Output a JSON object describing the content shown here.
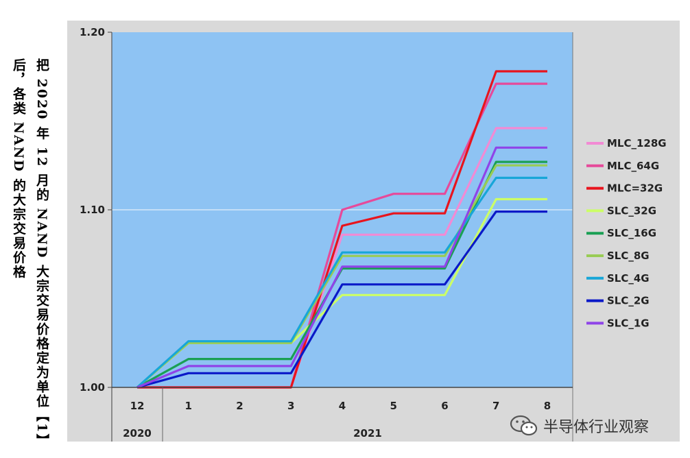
{
  "side_text": {
    "line1": "把 2020 年 12 月的 NAND 大宗交易价格定为单位【1】",
    "line2": "后，各类 NAND 的大宗交易价格"
  },
  "watermark": {
    "text": "半导体行业观察",
    "icon": "wechat-icon"
  },
  "chart_data": {
    "type": "line",
    "title": "",
    "xlabel": "",
    "ylabel": "",
    "categories": [
      "12",
      "1",
      "2",
      "3",
      "4",
      "5",
      "6",
      "7",
      "8"
    ],
    "category_groups": [
      {
        "label": "2020",
        "span": [
          0,
          0
        ]
      },
      {
        "label": "2021",
        "span": [
          1,
          8
        ]
      }
    ],
    "y_ticks": [
      "1.00",
      "1.10",
      "1.20"
    ],
    "ylim": [
      1.0,
      1.2
    ],
    "grid": "horizontal at 1.10",
    "legend_position": "right",
    "plot_bg": "#8ec3f3",
    "series": [
      {
        "name": "MLC_128G",
        "color": "#f28ad4",
        "values": [
          1.0,
          1.0,
          1.0,
          1.0,
          1.086,
          1.086,
          1.086,
          1.146,
          1.146
        ]
      },
      {
        "name": "MLC_64G",
        "color": "#e64a9a",
        "values": [
          1.0,
          1.0,
          1.0,
          1.0,
          1.1,
          1.109,
          1.109,
          1.171,
          1.171
        ]
      },
      {
        "name": "MLC=32G",
        "color": "#e8141d",
        "values": [
          1.0,
          1.0,
          1.0,
          1.0,
          1.091,
          1.098,
          1.098,
          1.178,
          1.178
        ]
      },
      {
        "name": "SLC_32G",
        "color": "#ccff66",
        "values": [
          1.0,
          1.025,
          1.025,
          1.025,
          1.052,
          1.052,
          1.052,
          1.106,
          1.106
        ]
      },
      {
        "name": "SLC_16G",
        "color": "#1aa054",
        "values": [
          1.0,
          1.016,
          1.016,
          1.016,
          1.067,
          1.067,
          1.067,
          1.127,
          1.127
        ]
      },
      {
        "name": "SLC_8G",
        "color": "#99cc55",
        "values": [
          1.0,
          1.025,
          1.025,
          1.025,
          1.074,
          1.074,
          1.074,
          1.125,
          1.125
        ]
      },
      {
        "name": "SLC_4G",
        "color": "#17a6d8",
        "values": [
          1.0,
          1.026,
          1.026,
          1.026,
          1.076,
          1.076,
          1.076,
          1.118,
          1.118
        ]
      },
      {
        "name": "SLC_2G",
        "color": "#0a19c8",
        "values": [
          1.0,
          1.008,
          1.008,
          1.008,
          1.058,
          1.058,
          1.058,
          1.099,
          1.099
        ]
      },
      {
        "name": "SLC_1G",
        "color": "#8f44e8",
        "values": [
          1.0,
          1.012,
          1.012,
          1.012,
          1.068,
          1.068,
          1.068,
          1.135,
          1.135
        ]
      }
    ]
  }
}
